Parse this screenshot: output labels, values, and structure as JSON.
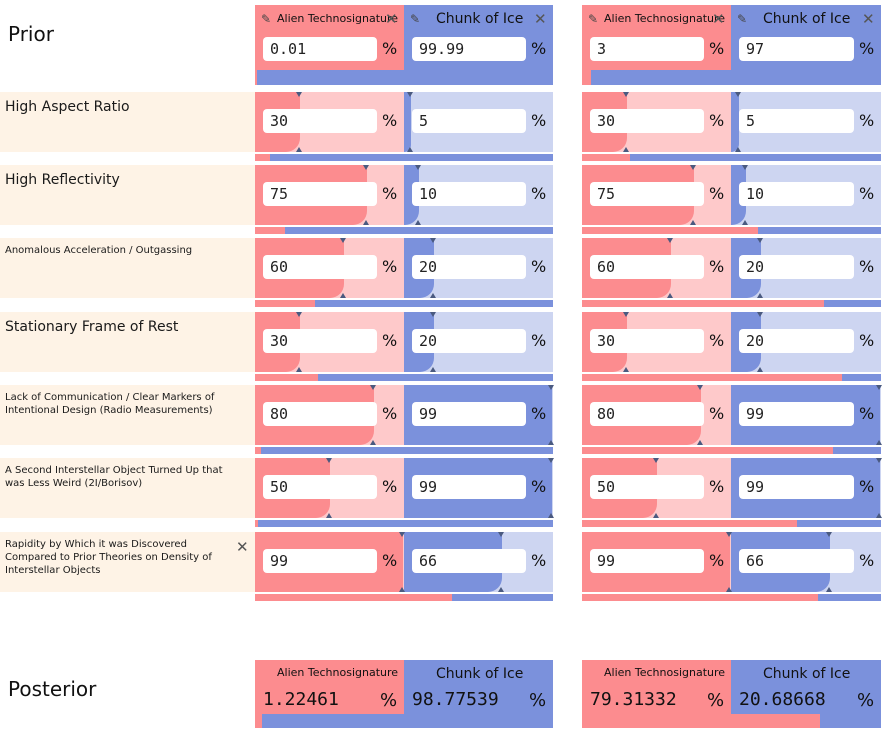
{
  "prior_label": "Prior",
  "posterior_label": "Posterior",
  "hypotheses": {
    "h1": "Alien Technosignature",
    "h2": "Chunk of Ice"
  },
  "pct": "%",
  "icons": {
    "edit": "pencil-icon",
    "remove": "close-icon"
  },
  "colors": {
    "red": "#fc8c8f",
    "red_light": "#fec9ca",
    "blue": "#7b91dc",
    "blue_light": "#cdd5f1",
    "cream": "#fef3e6"
  },
  "evidence": [
    {
      "label": "High Aspect Ratio"
    },
    {
      "label": "High Reflectivity"
    },
    {
      "label": "Anomalous Acceleration / Outgassing"
    },
    {
      "label": "Stationary Frame of Rest"
    },
    {
      "label": "Lack of Communication / Clear Markers of Intentional Design (Radio Measurements)"
    },
    {
      "label": "A Second Interstellar Object Turned Up that was Less Weird (2I/Borisov)"
    },
    {
      "label": "Rapidity by Which it was Discovered Compared to Prior Theories on Density of Interstellar Objects"
    }
  ],
  "panels": [
    {
      "prior_h1": "0.01",
      "prior_h2": "99.99",
      "prior_fraction_h1": 0.0001,
      "rows": [
        {
          "h1": "30",
          "h2": "5",
          "f1": 0.3,
          "f2": 0.05,
          "bar": 0.05
        },
        {
          "h1": "75",
          "h2": "10",
          "f1": 0.75,
          "f2": 0.1,
          "bar": 0.1
        },
        {
          "h1": "60",
          "h2": "20",
          "f1": 0.6,
          "f2": 0.2,
          "bar": 0.2
        },
        {
          "h1": "30",
          "h2": "20",
          "f1": 0.3,
          "f2": 0.2,
          "bar": 0.21
        },
        {
          "h1": "80",
          "h2": "99",
          "f1": 0.8,
          "f2": 0.99,
          "bar": 0.02
        },
        {
          "h1": "50",
          "h2": "99",
          "f1": 0.5,
          "f2": 0.99,
          "bar": 0.01
        },
        {
          "h1": "99",
          "h2": "66",
          "f1": 0.99,
          "f2": 0.66,
          "bar": 0.66
        }
      ],
      "post_h1": "1.22461",
      "post_h2": "98.77539",
      "post_fraction_h1": 0.0122
    },
    {
      "prior_h1": "3",
      "prior_h2": "97",
      "prior_fraction_h1": 0.03,
      "rows": [
        {
          "h1": "30",
          "h2": "5",
          "f1": 0.3,
          "f2": 0.05,
          "bar": 0.16
        },
        {
          "h1": "75",
          "h2": "10",
          "f1": 0.75,
          "f2": 0.1,
          "bar": 0.59
        },
        {
          "h1": "60",
          "h2": "20",
          "f1": 0.6,
          "f2": 0.2,
          "bar": 0.81
        },
        {
          "h1": "30",
          "h2": "20",
          "f1": 0.3,
          "f2": 0.2,
          "bar": 0.87
        },
        {
          "h1": "80",
          "h2": "99",
          "f1": 0.8,
          "f2": 0.99,
          "bar": 0.84
        },
        {
          "h1": "50",
          "h2": "99",
          "f1": 0.5,
          "f2": 0.99,
          "bar": 0.72
        },
        {
          "h1": "99",
          "h2": "66",
          "f1": 0.99,
          "f2": 0.66,
          "bar": 0.79
        }
      ],
      "post_h1": "79.31332",
      "post_h2": "20.68668",
      "post_fraction_h1": 0.7931
    }
  ]
}
